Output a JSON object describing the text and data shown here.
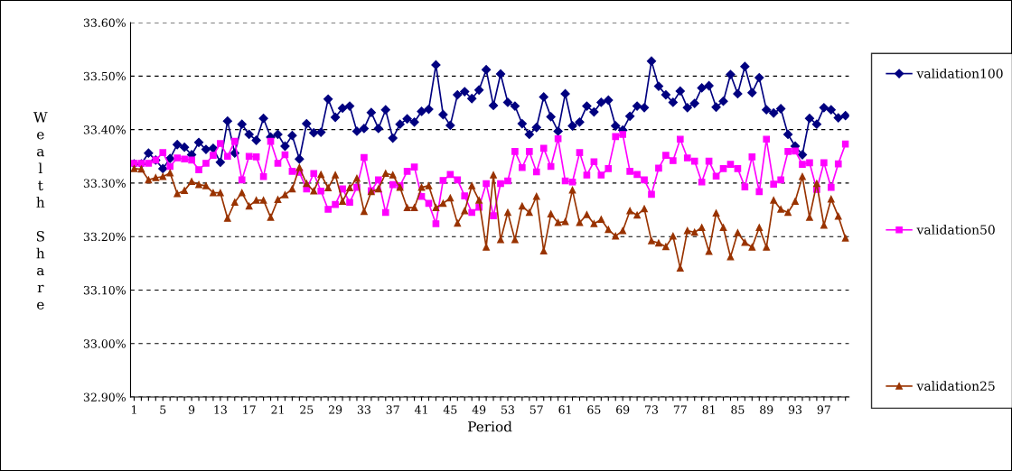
{
  "chart_data": {
    "type": "line",
    "xlabel": "Period",
    "ylabel": "Wealth Share",
    "categories": [
      "1",
      null,
      null,
      null,
      "5",
      null,
      null,
      null,
      "9",
      null,
      null,
      null,
      "13",
      null,
      null,
      null,
      "17",
      null,
      null,
      null,
      "21",
      null,
      null,
      null,
      "25",
      null,
      null,
      null,
      "29",
      null,
      null,
      null,
      "33",
      null,
      null,
      null,
      "37",
      null,
      null,
      null,
      "41",
      null,
      null,
      null,
      "45",
      null,
      null,
      null,
      "49",
      null,
      null,
      null,
      "53",
      null,
      null,
      null,
      "57",
      null,
      null,
      null,
      "61",
      null,
      null,
      null,
      "65",
      null,
      null,
      null,
      "69",
      null,
      null,
      null,
      "73",
      null,
      null,
      null,
      "77",
      null,
      null,
      null,
      "81",
      null,
      null,
      null,
      "85",
      null,
      null,
      null,
      "89",
      null,
      null,
      null,
      "93",
      null,
      null,
      null,
      "97",
      null,
      null,
      null
    ],
    "ylim": [
      32.9,
      33.6
    ],
    "yticks": [
      {
        "value": 32.9,
        "label": "32.90%"
      },
      {
        "value": 33.0,
        "label": "33.00%"
      },
      {
        "value": 33.1,
        "label": "33.10%"
      },
      {
        "value": 33.2,
        "label": "33.20%"
      },
      {
        "value": 33.3,
        "label": "33.30%"
      },
      {
        "value": 33.4,
        "label": "33.40%"
      },
      {
        "value": 33.5,
        "label": "33.50%"
      },
      {
        "value": 33.6,
        "label": "33.60%"
      }
    ],
    "grid": "y",
    "legend": "right",
    "line_style": "solid",
    "series": [
      {
        "name": "validation100",
        "color": "#000080",
        "marker": "diamond",
        "values": [
          33.336,
          33.336,
          33.356,
          33.343,
          33.327,
          33.346,
          33.372,
          33.367,
          33.353,
          33.376,
          33.363,
          33.365,
          33.339,
          33.416,
          33.356,
          33.41,
          33.391,
          33.38,
          33.421,
          33.386,
          33.391,
          33.369,
          33.389,
          33.345,
          33.411,
          33.394,
          33.395,
          33.457,
          33.423,
          33.44,
          33.444,
          33.397,
          33.402,
          33.432,
          33.402,
          33.437,
          33.384,
          33.41,
          33.42,
          33.414,
          33.434,
          33.438,
          33.521,
          33.428,
          33.408,
          33.465,
          33.471,
          33.458,
          33.474,
          33.512,
          33.445,
          33.504,
          33.451,
          33.444,
          33.411,
          33.391,
          33.404,
          33.461,
          33.424,
          33.397,
          33.467,
          33.407,
          33.414,
          33.444,
          33.433,
          33.451,
          33.455,
          33.407,
          33.399,
          33.425,
          33.444,
          33.441,
          33.528,
          33.481,
          33.465,
          33.451,
          33.472,
          33.441,
          33.449,
          33.478,
          33.482,
          33.442,
          33.453,
          33.503,
          33.467,
          33.518,
          33.469,
          33.497,
          33.437,
          33.431,
          33.439,
          33.391,
          33.369,
          33.353,
          33.421,
          33.41,
          33.441,
          33.437,
          33.422,
          33.426
        ]
      },
      {
        "name": "validation50",
        "color": "#ff00ff",
        "marker": "square",
        "values": [
          33.337,
          33.337,
          33.337,
          33.343,
          33.357,
          33.331,
          33.347,
          33.345,
          33.343,
          33.325,
          33.337,
          33.352,
          33.374,
          33.35,
          33.378,
          33.306,
          33.35,
          33.349,
          33.312,
          33.378,
          33.337,
          33.353,
          33.322,
          33.32,
          33.289,
          33.318,
          33.285,
          33.251,
          33.26,
          33.289,
          33.264,
          33.292,
          33.348,
          33.286,
          33.306,
          33.245,
          33.297,
          33.295,
          33.322,
          33.33,
          33.275,
          33.262,
          33.224,
          33.305,
          33.316,
          33.306,
          33.276,
          33.245,
          33.255,
          33.299,
          33.239,
          33.299,
          33.304,
          33.359,
          33.329,
          33.359,
          33.321,
          33.365,
          33.331,
          33.383,
          33.304,
          33.302,
          33.357,
          33.315,
          33.34,
          33.315,
          33.327,
          33.387,
          33.391,
          33.322,
          33.316,
          33.306,
          33.279,
          33.328,
          33.352,
          33.342,
          33.382,
          33.347,
          33.341,
          33.302,
          33.341,
          33.313,
          33.327,
          33.335,
          33.327,
          33.293,
          33.349,
          33.284,
          33.382,
          33.298,
          33.306,
          33.359,
          33.36,
          33.335,
          33.338,
          33.288,
          33.338,
          33.292,
          33.336,
          33.373
        ]
      },
      {
        "name": "validation25",
        "color": "#993300",
        "marker": "triangle",
        "values": [
          33.327,
          33.326,
          33.306,
          33.31,
          33.312,
          33.319,
          33.28,
          33.286,
          33.303,
          33.297,
          33.295,
          33.282,
          33.282,
          33.234,
          33.264,
          33.282,
          33.257,
          33.268,
          33.268,
          33.236,
          33.269,
          33.278,
          33.289,
          33.329,
          33.299,
          33.285,
          33.316,
          33.291,
          33.315,
          33.266,
          33.291,
          33.309,
          33.247,
          33.284,
          33.289,
          33.318,
          33.315,
          33.292,
          33.254,
          33.254,
          33.292,
          33.295,
          33.254,
          33.262,
          33.272,
          33.225,
          33.248,
          33.295,
          33.268,
          33.18,
          33.315,
          33.194,
          33.245,
          33.194,
          33.257,
          33.245,
          33.275,
          33.173,
          33.242,
          33.226,
          33.228,
          33.287,
          33.226,
          33.241,
          33.224,
          33.232,
          33.213,
          33.201,
          33.211,
          33.248,
          33.24,
          33.252,
          33.192,
          33.188,
          33.181,
          33.201,
          33.141,
          33.211,
          33.208,
          33.217,
          33.172,
          33.244,
          33.217,
          33.162,
          33.207,
          33.189,
          33.18,
          33.217,
          33.18,
          33.268,
          33.251,
          33.245,
          33.266,
          33.312,
          33.236,
          33.299,
          33.221,
          33.27,
          33.238,
          33.197
        ]
      }
    ]
  }
}
